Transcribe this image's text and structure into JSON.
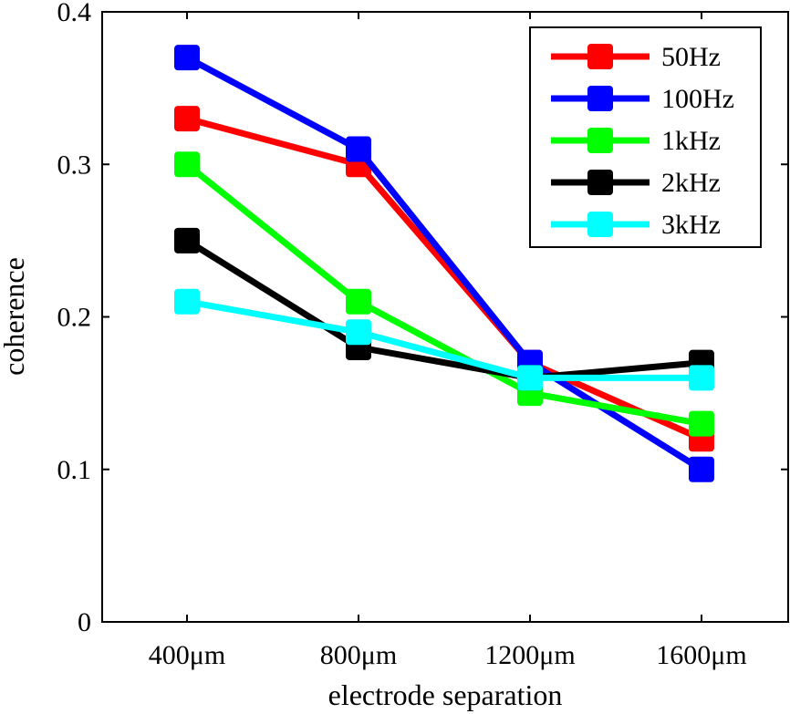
{
  "chart_data": {
    "type": "line",
    "title": "",
    "xlabel": "electrode separation",
    "ylabel": "coherence",
    "categories": [
      "400μm",
      "800μm",
      "1200μm",
      "1600μm"
    ],
    "ylim": [
      0,
      0.4
    ],
    "yticks": [
      0,
      0.1,
      0.2,
      0.3,
      0.4
    ],
    "ytick_labels": [
      "0",
      "0.1",
      "0.2",
      "0.3",
      "0.4"
    ],
    "legend_position": "top-right",
    "series": [
      {
        "name": "50Hz",
        "color": "#ff0000",
        "values": [
          0.33,
          0.3,
          0.17,
          0.12
        ]
      },
      {
        "name": "100Hz",
        "color": "#0000ff",
        "values": [
          0.37,
          0.31,
          0.17,
          0.1
        ]
      },
      {
        "name": "1kHz",
        "color": "#00ff00",
        "values": [
          0.3,
          0.21,
          0.15,
          0.13
        ]
      },
      {
        "name": "2kHz",
        "color": "#000000",
        "values": [
          0.25,
          0.18,
          0.16,
          0.17
        ]
      },
      {
        "name": "3kHz",
        "color": "#00ffff",
        "values": [
          0.21,
          0.19,
          0.16,
          0.16
        ]
      }
    ]
  }
}
